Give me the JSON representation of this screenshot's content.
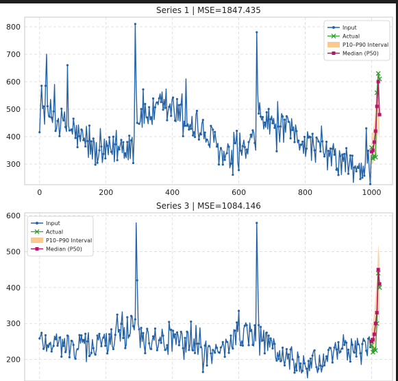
{
  "figure": {
    "subplots": [
      {
        "title": "Series 1 | MSE=1847.435",
        "legend_position": "top-right",
        "legend_labels": {
          "input": "Input",
          "actual": "Actual",
          "interval": "P10–P90 Interval",
          "median": "Median (P50)"
        }
      },
      {
        "title": "Series 3 | MSE=1084.146",
        "legend_position": "top-left",
        "legend_labels": {
          "input": "Input",
          "actual": "Actual",
          "interval": "P10–P90 Interval",
          "median": "Median (P50)"
        }
      }
    ]
  },
  "colors": {
    "input": "#2563a8",
    "actual": "#2ca02c",
    "interval": "#f9c98f",
    "median": "#b5176b",
    "grid": "#d9d9d9",
    "text": "#222222",
    "axes_edge": "#c8c8c8"
  },
  "chart_data": [
    {
      "type": "line",
      "title": "Series 1 | MSE=1847.435",
      "xlabel": "",
      "ylabel": "",
      "xlim": [
        -45,
        1063
      ],
      "ylim": [
        225,
        835
      ],
      "xticks": [
        0,
        200,
        400,
        600,
        800,
        1000
      ],
      "yticks": [
        300,
        400,
        500,
        600,
        700,
        800
      ],
      "grid": true,
      "legend": "top-right",
      "series": [
        {
          "name": "Input",
          "marker": "o",
          "x_start": 0,
          "x_end": 1000,
          "seasonal_profile_x": [
            0,
            100,
            180,
            285,
            290,
            400,
            530,
            560,
            650,
            660,
            760,
            850,
            950,
            1000
          ],
          "seasonal_profile_y": [
            510,
            420,
            330,
            380,
            470,
            500,
            375,
            305,
            370,
            470,
            410,
            345,
            275,
            310
          ],
          "typical_spread": 70,
          "spikes": [
            [
              20,
              700
            ],
            [
              45,
              590
            ],
            [
              85,
              660
            ],
            [
              288,
              810
            ],
            [
              292,
              580
            ],
            [
              440,
              610
            ],
            [
              655,
              780
            ],
            [
              658,
              560
            ],
            [
              985,
              430
            ]
          ]
        },
        {
          "name": "Actual",
          "marker": "x",
          "x": [
            1000,
            1004,
            1008,
            1012,
            1016,
            1020,
            1024
          ],
          "y": [
            360,
            320,
            330,
            325,
            560,
            630,
            610
          ]
        },
        {
          "name": "Median (P50)",
          "marker": "s",
          "x": [
            1000,
            1004,
            1008,
            1012,
            1016,
            1020,
            1024
          ],
          "y": [
            345,
            350,
            380,
            420,
            510,
            600,
            480
          ],
          "p10": [
            300,
            300,
            320,
            340,
            380,
            430,
            380
          ],
          "p90": [
            405,
            420,
            450,
            520,
            600,
            650,
            570
          ]
        }
      ]
    },
    {
      "type": "line",
      "title": "Series 3 | MSE=1084.146",
      "xlabel": "",
      "ylabel": "",
      "xlim": [
        -45,
        1063
      ],
      "ylim": [
        140,
        608
      ],
      "xticks": [
        0,
        200,
        400,
        600,
        800,
        1000
      ],
      "yticks": [
        200,
        300,
        400,
        500,
        600
      ],
      "grid": true,
      "legend": "top-left",
      "series": [
        {
          "name": "Input",
          "marker": "o",
          "x_start": 0,
          "x_end": 1000,
          "seasonal_profile_x": [
            0,
            100,
            200,
            280,
            285,
            300,
            450,
            520,
            620,
            660,
            740,
            800,
            900,
            1000
          ],
          "seasonal_profile_y": [
            255,
            235,
            245,
            300,
            330,
            265,
            245,
            215,
            275,
            260,
            205,
            180,
            215,
            250
          ],
          "typical_spread": 45,
          "spikes": [
            [
              290,
              580
            ],
            [
              292,
              540
            ],
            [
              295,
              420
            ],
            [
              655,
              580
            ],
            [
              658,
              430
            ],
            [
              600,
              335
            ],
            [
              470,
              295
            ]
          ]
        },
        {
          "name": "Actual",
          "marker": "x",
          "x": [
            1000,
            1004,
            1008,
            1012,
            1016,
            1020,
            1024
          ],
          "y": [
            240,
            220,
            230,
            225,
            300,
            440,
            400
          ]
        },
        {
          "name": "Median (P50)",
          "marker": "s",
          "x": [
            1000,
            1004,
            1008,
            1012,
            1016,
            1020,
            1024
          ],
          "y": [
            250,
            255,
            270,
            300,
            330,
            450,
            410
          ],
          "p10": [
            220,
            220,
            230,
            250,
            270,
            330,
            300
          ],
          "p90": [
            285,
            300,
            330,
            380,
            430,
            520,
            480
          ]
        }
      ]
    }
  ]
}
